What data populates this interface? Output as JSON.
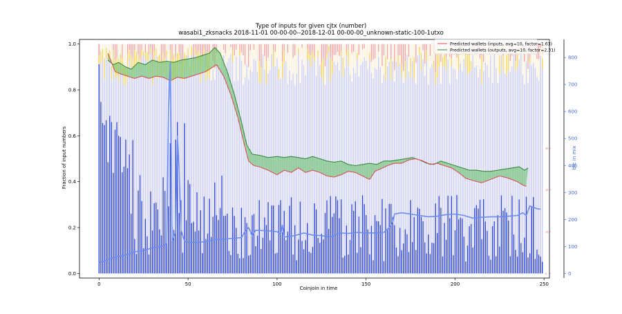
{
  "chart_data": {
    "type": "bar",
    "title": "Type of inputs for given cjtx (number)",
    "subtitle": "wasabi1_zksnacks 2018-11-01 00-00-00--2018-12-01 00-00-00_unknown-static-100-1utxo",
    "xlabel": "Coinjoin in time",
    "ylabel": "Fraction of input numbers",
    "y2label": "btc in mix",
    "xlim": [
      -11,
      253
    ],
    "ylim": [
      -0.02,
      1.02
    ],
    "y2lim": [
      0,
      850
    ],
    "y3lim": [
      0,
      55
    ],
    "x_ticks": [
      0,
      50,
      100,
      150,
      200,
      250
    ],
    "y_ticks": [
      0.0,
      0.2,
      0.4,
      0.6,
      0.8,
      1.0
    ],
    "y2_ticks": [
      0,
      100,
      200,
      300,
      400,
      500,
      600,
      700,
      800
    ],
    "y3_ticks": [
      0,
      10,
      20,
      30
    ],
    "legend": {
      "location": "top-right",
      "entries": [
        {
          "label": "Predicted wallets (inputs, avg=10, factor=1.63)",
          "color": "#e06666"
        },
        {
          "label": "Predicted wallets (outputs, avg=10, factor=2.31)",
          "color": "#4f9e4f"
        }
      ]
    },
    "colors": {
      "fresh_bar": "#2a3fd6",
      "remix_bar": "#c9ccf5",
      "top_yellow": "#f7d35c",
      "top_red": "#f2a3a3",
      "top_cream": "#fdf0d8",
      "btc_line": "#6b8cf0",
      "inputs_line": "#d9534f",
      "outputs_line": "#3a8a3a",
      "fill_between": "#74c476"
    },
    "x_count": 250,
    "btc_in_mix_points": [
      [
        0,
        40
      ],
      [
        3,
        45
      ],
      [
        6,
        55
      ],
      [
        10,
        62
      ],
      [
        15,
        68
      ],
      [
        20,
        80
      ],
      [
        25,
        85
      ],
      [
        30,
        95
      ],
      [
        35,
        100
      ],
      [
        38,
        110
      ],
      [
        39,
        600
      ],
      [
        40,
        780
      ],
      [
        41,
        120
      ],
      [
        43,
        150
      ],
      [
        44,
        510
      ],
      [
        45,
        380
      ],
      [
        46,
        160
      ],
      [
        48,
        120
      ],
      [
        50,
        115
      ],
      [
        55,
        115
      ],
      [
        60,
        118
      ],
      [
        65,
        125
      ],
      [
        70,
        127
      ],
      [
        75,
        130
      ],
      [
        80,
        133
      ],
      [
        82,
        155
      ],
      [
        84,
        170
      ],
      [
        86,
        140
      ],
      [
        88,
        160
      ],
      [
        95,
        158
      ],
      [
        100,
        155
      ],
      [
        102,
        145
      ],
      [
        103,
        180
      ],
      [
        104,
        135
      ],
      [
        110,
        140
      ],
      [
        115,
        150
      ],
      [
        120,
        142
      ],
      [
        125,
        140
      ],
      [
        130,
        135
      ],
      [
        135,
        150
      ],
      [
        140,
        148
      ],
      [
        145,
        152
      ],
      [
        150,
        150
      ],
      [
        155,
        150
      ],
      [
        160,
        152
      ],
      [
        163,
        170
      ],
      [
        165,
        190
      ],
      [
        166,
        220
      ],
      [
        170,
        225
      ],
      [
        175,
        220
      ],
      [
        180,
        215
      ],
      [
        185,
        210
      ],
      [
        190,
        212
      ],
      [
        195,
        218
      ],
      [
        200,
        220
      ],
      [
        205,
        215
      ],
      [
        210,
        205
      ],
      [
        215,
        208
      ],
      [
        220,
        210
      ],
      [
        225,
        210
      ],
      [
        230,
        212
      ],
      [
        235,
        215
      ],
      [
        238,
        225
      ],
      [
        240,
        215
      ],
      [
        242,
        250
      ],
      [
        244,
        245
      ],
      [
        246,
        240
      ],
      [
        248,
        238
      ]
    ],
    "inputs_wallets_points": [
      [
        5,
        0.96
      ],
      [
        7,
        0.92
      ],
      [
        9,
        0.88
      ],
      [
        12,
        0.87
      ],
      [
        16,
        0.86
      ],
      [
        20,
        0.85
      ],
      [
        24,
        0.86
      ],
      [
        28,
        0.85
      ],
      [
        32,
        0.86
      ],
      [
        36,
        0.855
      ],
      [
        40,
        0.84
      ],
      [
        44,
        0.855
      ],
      [
        48,
        0.85
      ],
      [
        52,
        0.86
      ],
      [
        56,
        0.87
      ],
      [
        60,
        0.88
      ],
      [
        63,
        0.895
      ],
      [
        66,
        0.91
      ],
      [
        70,
        0.86
      ],
      [
        74,
        0.78
      ],
      [
        78,
        0.68
      ],
      [
        81,
        0.58
      ],
      [
        84,
        0.49
      ],
      [
        87,
        0.47
      ],
      [
        90,
        0.465
      ],
      [
        95,
        0.45
      ],
      [
        100,
        0.43
      ],
      [
        104,
        0.45
      ],
      [
        108,
        0.44
      ],
      [
        112,
        0.46
      ],
      [
        116,
        0.44
      ],
      [
        120,
        0.45
      ],
      [
        124,
        0.44
      ],
      [
        128,
        0.425
      ],
      [
        132,
        0.42
      ],
      [
        136,
        0.43
      ],
      [
        140,
        0.445
      ],
      [
        144,
        0.44
      ],
      [
        148,
        0.425
      ],
      [
        152,
        0.41
      ],
      [
        155,
        0.445
      ],
      [
        158,
        0.455
      ],
      [
        162,
        0.47
      ],
      [
        166,
        0.48
      ],
      [
        170,
        0.48
      ],
      [
        174,
        0.495
      ],
      [
        178,
        0.5
      ],
      [
        182,
        0.49
      ],
      [
        186,
        0.475
      ],
      [
        190,
        0.48
      ],
      [
        194,
        0.47
      ],
      [
        198,
        0.46
      ],
      [
        202,
        0.44
      ],
      [
        206,
        0.415
      ],
      [
        210,
        0.405
      ],
      [
        215,
        0.395
      ],
      [
        220,
        0.41
      ],
      [
        225,
        0.425
      ],
      [
        230,
        0.415
      ],
      [
        235,
        0.4
      ],
      [
        238,
        0.385
      ],
      [
        240,
        0.38
      ]
    ],
    "outputs_wallets_points": [
      [
        5,
        0.93
      ],
      [
        8,
        0.91
      ],
      [
        11,
        0.92
      ],
      [
        15,
        0.9
      ],
      [
        18,
        0.89
      ],
      [
        22,
        0.92
      ],
      [
        26,
        0.91
      ],
      [
        30,
        0.93
      ],
      [
        34,
        0.92
      ],
      [
        38,
        0.925
      ],
      [
        42,
        0.92
      ],
      [
        46,
        0.93
      ],
      [
        50,
        0.935
      ],
      [
        54,
        0.94
      ],
      [
        58,
        0.95
      ],
      [
        62,
        0.96
      ],
      [
        65,
        0.985
      ],
      [
        68,
        0.96
      ],
      [
        72,
        0.88
      ],
      [
        76,
        0.78
      ],
      [
        80,
        0.66
      ],
      [
        83,
        0.56
      ],
      [
        86,
        0.52
      ],
      [
        90,
        0.515
      ],
      [
        95,
        0.505
      ],
      [
        100,
        0.51
      ],
      [
        104,
        0.505
      ],
      [
        108,
        0.51
      ],
      [
        112,
        0.505
      ],
      [
        116,
        0.5
      ],
      [
        120,
        0.51
      ],
      [
        124,
        0.5
      ],
      [
        128,
        0.49
      ],
      [
        132,
        0.485
      ],
      [
        136,
        0.49
      ],
      [
        140,
        0.475
      ],
      [
        144,
        0.47
      ],
      [
        148,
        0.475
      ],
      [
        152,
        0.48
      ],
      [
        156,
        0.475
      ],
      [
        160,
        0.49
      ],
      [
        164,
        0.49
      ],
      [
        168,
        0.495
      ],
      [
        172,
        0.5
      ],
      [
        176,
        0.505
      ],
      [
        180,
        0.495
      ],
      [
        184,
        0.48
      ],
      [
        188,
        0.475
      ],
      [
        192,
        0.49
      ],
      [
        196,
        0.48
      ],
      [
        200,
        0.47
      ],
      [
        204,
        0.46
      ],
      [
        208,
        0.45
      ],
      [
        212,
        0.45
      ],
      [
        216,
        0.445
      ],
      [
        220,
        0.445
      ],
      [
        224,
        0.45
      ],
      [
        228,
        0.455
      ],
      [
        232,
        0.46
      ],
      [
        236,
        0.465
      ],
      [
        239,
        0.45
      ],
      [
        241,
        0.46
      ]
    ]
  }
}
